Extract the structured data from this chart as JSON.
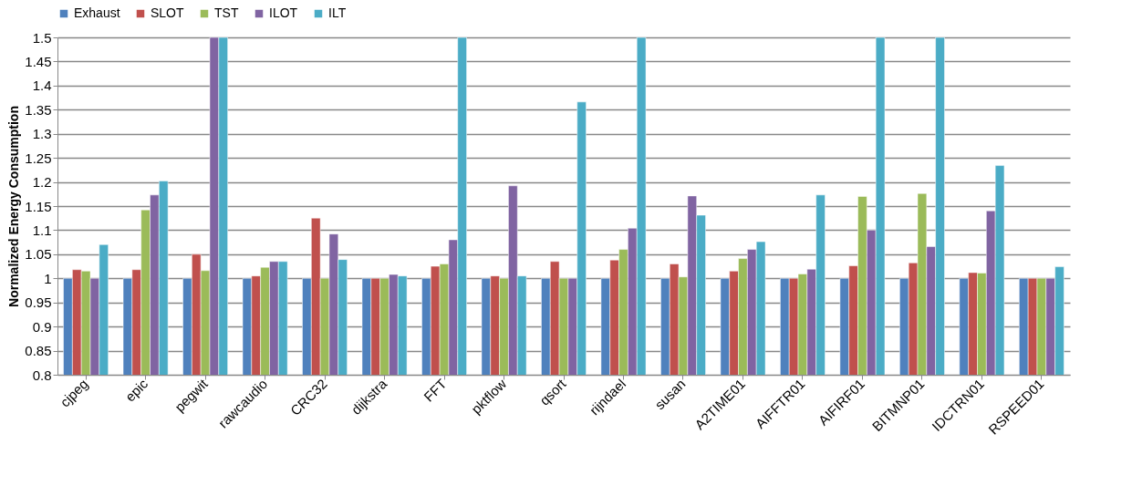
{
  "chart_data": {
    "type": "bar",
    "ylabel": "Normalized Energy Consumption",
    "categories": [
      "cjpeg",
      "epic",
      "pegwit",
      "rawcaudio",
      "CRC32",
      "dijkstra",
      "FFT",
      "pktflow",
      "qsort",
      "rijndael",
      "susan",
      "A2TIME01",
      "AIFFTR01",
      "AIFIRF01",
      "BITMNP01",
      "IDCTRN01",
      "RSPEED01"
    ],
    "series": [
      {
        "name": "Exhaust",
        "color": "#4f81bd",
        "values": [
          1,
          1,
          1,
          1,
          1,
          1,
          1,
          1,
          1,
          1,
          1,
          1,
          1,
          1,
          1,
          1,
          1
        ]
      },
      {
        "name": "SLOT",
        "color": "#c0504d",
        "values": [
          1.018,
          1.018,
          1.05,
          1.005,
          1.125,
          1.0,
          1.025,
          1.005,
          1.035,
          1.038,
          1.03,
          1.015,
          1.0,
          1.026,
          1.032,
          1.012,
          1.0
        ]
      },
      {
        "name": "TST",
        "color": "#9bbb59",
        "values": [
          1.015,
          1.142,
          1.016,
          1.023,
          1.0,
          1.0,
          1.03,
          1.0,
          1.0,
          1.06,
          1.003,
          1.041,
          1.009,
          1.17,
          1.176,
          1.011,
          1.0
        ]
      },
      {
        "name": "ILOT",
        "color": "#8064a2",
        "values": [
          1.0,
          1.173,
          1.5,
          1.035,
          1.092,
          1.008,
          1.08,
          1.192,
          1.0,
          1.104,
          1.171,
          1.06,
          1.019,
          1.1,
          1.066,
          1.14,
          1.0
        ]
      },
      {
        "name": "ILT",
        "color": "#4bacc6",
        "values": [
          1.07,
          1.202,
          1.5,
          1.035,
          1.039,
          1.005,
          1.5,
          1.005,
          1.366,
          1.5,
          1.131,
          1.076,
          1.173,
          1.5,
          1.5,
          1.234,
          1.024
        ]
      }
    ],
    "ylim": [
      0.8,
      1.5
    ],
    "yticks": [
      0.8,
      0.85,
      0.9,
      0.95,
      1,
      1.05,
      1.1,
      1.15,
      1.2,
      1.25,
      1.3,
      1.35,
      1.4,
      1.45,
      1.5
    ],
    "grid": "y",
    "legend": "top"
  }
}
